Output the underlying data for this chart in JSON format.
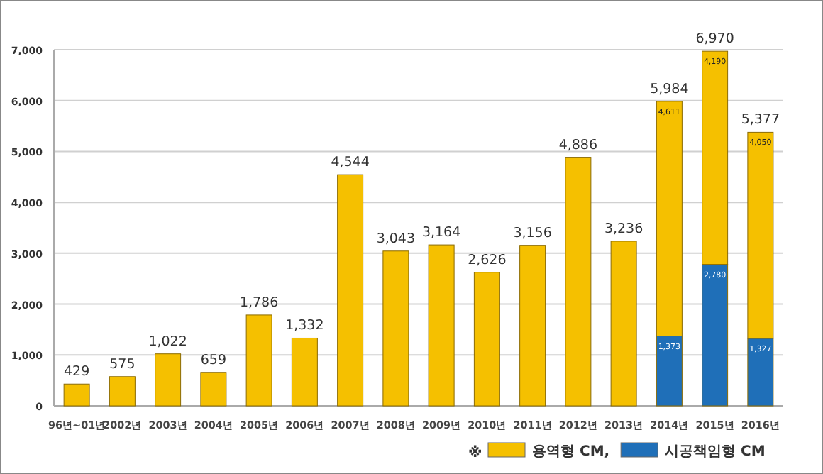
{
  "chart_data": {
    "type": "bar",
    "stacked": true,
    "legend": "bottom right",
    "legend_title": "※",
    "grid": "y",
    "categories": [
      "96년~01년",
      "2002년",
      "2003년",
      "2004년",
      "2005년",
      "2006년",
      "2007년",
      "2008년",
      "2009년",
      "2010년",
      "2011년",
      "2012년",
      "2013년",
      "2014년",
      "2015년",
      "2016년"
    ],
    "series": [
      {
        "name": "시공책임형 CM",
        "color": "#1f6fb8",
        "values": [
          null,
          null,
          null,
          null,
          null,
          null,
          null,
          null,
          null,
          null,
          null,
          null,
          null,
          1373,
          2780,
          1327
        ],
        "value_labels": [
          null,
          null,
          null,
          null,
          null,
          null,
          null,
          null,
          null,
          null,
          null,
          null,
          null,
          "1,373",
          "2,780",
          "1,327"
        ]
      },
      {
        "name": "용역형 CM,",
        "color": "#f5c000",
        "values": [
          429,
          575,
          1022,
          659,
          1786,
          1332,
          4544,
          3043,
          3164,
          2626,
          3156,
          4886,
          3236,
          4611,
          4190,
          4050
        ],
        "value_labels": [
          null,
          null,
          null,
          null,
          null,
          null,
          null,
          null,
          null,
          null,
          null,
          null,
          null,
          "4,611",
          "4,190",
          "4,050"
        ]
      }
    ],
    "totals": [
      "429",
      "575",
      "1,022",
      "659",
      "1,786",
      "1,332",
      "4,544",
      "3,043",
      "3,164",
      "2,626",
      "3,156",
      "4,886",
      "3,236",
      "5,984",
      "6,970",
      "5,377"
    ],
    "ylim": [
      0,
      7000
    ],
    "yticks": [
      0,
      {
        "value": 1000,
        "label": "1,000"
      },
      {
        "value": 2000,
        "label": "2,000"
      },
      {
        "value": 3000,
        "label": "3,000"
      },
      {
        "value": 4000,
        "label": "4,000"
      },
      {
        "value": 5000,
        "label": "5,000"
      },
      {
        "value": 6000,
        "label": "6,000"
      },
      {
        "value": 7000,
        "label": "7,000"
      }
    ]
  }
}
